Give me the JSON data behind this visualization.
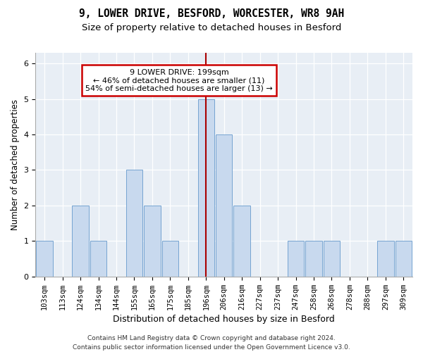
{
  "title_line1": "9, LOWER DRIVE, BESFORD, WORCESTER, WR8 9AH",
  "title_line2": "Size of property relative to detached houses in Besford",
  "xlabel": "Distribution of detached houses by size in Besford",
  "ylabel": "Number of detached properties",
  "footnote_line1": "Contains HM Land Registry data © Crown copyright and database right 2024.",
  "footnote_line2": "Contains public sector information licensed under the Open Government Licence v3.0.",
  "bin_labels": [
    "103sqm",
    "113sqm",
    "124sqm",
    "134sqm",
    "144sqm",
    "155sqm",
    "165sqm",
    "175sqm",
    "185sqm",
    "196sqm",
    "206sqm",
    "216sqm",
    "227sqm",
    "237sqm",
    "247sqm",
    "258sqm",
    "268sqm",
    "278sqm",
    "288sqm",
    "297sqm",
    "309sqm"
  ],
  "bar_heights": [
    1,
    0,
    2,
    1,
    0,
    3,
    2,
    1,
    0,
    5,
    4,
    2,
    0,
    0,
    1,
    1,
    1,
    0,
    0,
    1,
    1
  ],
  "bar_color": "#c8d9ee",
  "bar_edge_color": "#6699cc",
  "highlight_bin_index": 9,
  "highlight_line_color": "#aa0000",
  "annotation_text": "9 LOWER DRIVE: 199sqm\n← 46% of detached houses are smaller (11)\n54% of semi-detached houses are larger (13) →",
  "annotation_box_color": "#ffffff",
  "annotation_box_edge_color": "#cc0000",
  "ylim": [
    0,
    6.3
  ],
  "yticks": [
    0,
    1,
    2,
    3,
    4,
    5,
    6
  ],
  "title_fontsize": 10.5,
  "subtitle_fontsize": 9.5,
  "xlabel_fontsize": 9,
  "ylabel_fontsize": 8.5,
  "tick_fontsize": 7.5,
  "annotation_fontsize": 8,
  "footnote_fontsize": 6.5,
  "bg_color": "#e8eef5"
}
